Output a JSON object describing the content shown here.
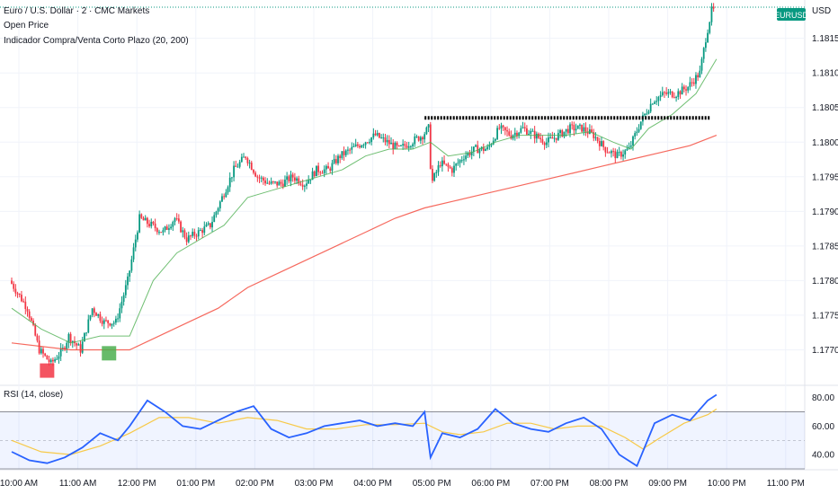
{
  "legend": {
    "symbol": "Euro / U.S. Dollar · 2 · CMC Markets",
    "line2": "Open Price",
    "line3": "Indicador Compra/Venta Corto Plazo (20, 200)"
  },
  "currency": "USD",
  "symbol_badge": "EURUSD",
  "rsi_label": "RSI (14, close)",
  "colors": {
    "up": "#089981",
    "down": "#f23645",
    "ma_fast": "#4caf50",
    "ma_slow": "#f44336",
    "rsi_line": "#2962ff",
    "rsi_ma": "#f7c948",
    "level_line": "#000000",
    "buy_marker": "#4caf50",
    "sell_marker": "#f23645",
    "badge": "#089981"
  },
  "chart_data": [
    {
      "type": "candlestick",
      "title": "",
      "x_ticks": [
        "10:00 AM",
        "11:00 AM",
        "12:00 PM",
        "01:00 PM",
        "02:00 PM",
        "03:00 PM",
        "04:00 PM",
        "05:00 PM",
        "06:00 PM",
        "07:00 PM",
        "08:00 PM",
        "09:00 PM",
        "10:00 PM",
        "11:00 PM"
      ],
      "y_ticks": [
        "1.18150",
        "1.18100",
        "1.18050",
        "1.18000",
        "1.17950",
        "1.17900",
        "1.17850",
        "1.17800",
        "1.17750",
        "1.17700"
      ],
      "ylim": [
        1.1765,
        1.18195
      ],
      "price_path": [
        [
          0,
          1.178
        ],
        [
          0.3,
          1.1776
        ],
        [
          0.5,
          1.177
        ],
        [
          0.7,
          1.1768
        ],
        [
          0.9,
          1.177
        ],
        [
          1.0,
          1.1772
        ],
        [
          1.2,
          1.177
        ],
        [
          1.4,
          1.1776
        ],
        [
          1.6,
          1.1774
        ],
        [
          1.8,
          1.1774
        ],
        [
          2.0,
          1.178
        ],
        [
          2.2,
          1.1789
        ],
        [
          2.4,
          1.1788
        ],
        [
          2.6,
          1.1787
        ],
        [
          2.8,
          1.1789
        ],
        [
          3.0,
          1.1786
        ],
        [
          3.2,
          1.1787
        ],
        [
          3.4,
          1.1788
        ],
        [
          3.6,
          1.1792
        ],
        [
          3.8,
          1.1796
        ],
        [
          4.0,
          1.1798
        ],
        [
          4.2,
          1.1795
        ],
        [
          4.4,
          1.1794
        ],
        [
          4.6,
          1.1794
        ],
        [
          4.8,
          1.1795
        ],
        [
          5.0,
          1.1794
        ],
        [
          5.2,
          1.1796
        ],
        [
          5.4,
          1.1796
        ],
        [
          5.6,
          1.1798
        ],
        [
          5.8,
          1.1799
        ],
        [
          6.0,
          1.18
        ],
        [
          6.2,
          1.1801
        ],
        [
          6.4,
          1.18
        ],
        [
          6.6,
          1.1799
        ],
        [
          6.8,
          1.18
        ],
        [
          7.0,
          1.1801
        ],
        [
          7.1,
          1.1802
        ],
        [
          7.15,
          1.1794
        ],
        [
          7.3,
          1.1797
        ],
        [
          7.5,
          1.1796
        ],
        [
          7.7,
          1.1798
        ],
        [
          7.9,
          1.1799
        ],
        [
          8.1,
          1.1799
        ],
        [
          8.3,
          1.1802
        ],
        [
          8.5,
          1.1801
        ],
        [
          8.7,
          1.1802
        ],
        [
          8.9,
          1.1801
        ],
        [
          9.1,
          1.18
        ],
        [
          9.3,
          1.1801
        ],
        [
          9.5,
          1.1802
        ],
        [
          9.7,
          1.1802
        ],
        [
          9.9,
          1.1801
        ],
        [
          10.1,
          1.1799
        ],
        [
          10.3,
          1.1798
        ],
        [
          10.5,
          1.1799
        ],
        [
          10.7,
          1.1803
        ],
        [
          10.9,
          1.1806
        ],
        [
          11.1,
          1.1807
        ],
        [
          11.3,
          1.1807
        ],
        [
          11.5,
          1.1808
        ],
        [
          11.7,
          1.181
        ],
        [
          11.8,
          1.1815
        ],
        [
          11.9,
          1.1819
        ]
      ],
      "ma_fast_path": [
        [
          0,
          1.1776
        ],
        [
          0.5,
          1.1773
        ],
        [
          1.0,
          1.1771
        ],
        [
          1.5,
          1.1772
        ],
        [
          2.0,
          1.1772
        ],
        [
          2.4,
          1.178
        ],
        [
          2.8,
          1.1784
        ],
        [
          3.2,
          1.1786
        ],
        [
          3.6,
          1.1788
        ],
        [
          4.0,
          1.1792
        ],
        [
          4.4,
          1.1793
        ],
        [
          4.8,
          1.1794
        ],
        [
          5.2,
          1.1795
        ],
        [
          5.6,
          1.1796
        ],
        [
          6.0,
          1.1798
        ],
        [
          6.4,
          1.1799
        ],
        [
          6.8,
          1.1799
        ],
        [
          7.1,
          1.18
        ],
        [
          7.4,
          1.1798
        ],
        [
          7.8,
          1.17985
        ],
        [
          8.2,
          1.18
        ],
        [
          8.6,
          1.1801
        ],
        [
          9.0,
          1.1801
        ],
        [
          9.4,
          1.1801
        ],
        [
          9.8,
          1.18015
        ],
        [
          10.2,
          1.18
        ],
        [
          10.5,
          1.1799
        ],
        [
          10.8,
          1.1802
        ],
        [
          11.2,
          1.1804
        ],
        [
          11.6,
          1.1807
        ],
        [
          11.95,
          1.1812
        ]
      ],
      "ma_slow_path": [
        [
          0,
          1.1771
        ],
        [
          1.0,
          1.177
        ],
        [
          2.0,
          1.177
        ],
        [
          2.5,
          1.1772
        ],
        [
          3.0,
          1.1774
        ],
        [
          3.5,
          1.1776
        ],
        [
          4.0,
          1.1779
        ],
        [
          4.5,
          1.1781
        ],
        [
          5.0,
          1.1783
        ],
        [
          5.5,
          1.1785
        ],
        [
          6.0,
          1.1787
        ],
        [
          6.5,
          1.1789
        ],
        [
          7.0,
          1.17905
        ],
        [
          7.5,
          1.17915
        ],
        [
          8.0,
          1.17925
        ],
        [
          8.5,
          1.17935
        ],
        [
          9.0,
          1.17945
        ],
        [
          9.5,
          1.17955
        ],
        [
          10.0,
          1.17965
        ],
        [
          10.5,
          1.17975
        ],
        [
          11.0,
          1.17985
        ],
        [
          11.5,
          1.17995
        ],
        [
          11.95,
          1.1801
        ]
      ],
      "level_line": {
        "value": 1.18035,
        "from_hour": 7.0,
        "to_hour": 12.0
      },
      "markers": [
        {
          "kind": "sell",
          "hour": 0.6,
          "value": 1.1767
        },
        {
          "kind": "buy",
          "hour": 1.65,
          "value": 1.17695
        }
      ],
      "last_price_line": 1.18195
    },
    {
      "type": "line",
      "title": "RSI (14, close)",
      "y_ticks": [
        "80.00",
        "60.00",
        "40.00"
      ],
      "ylim": [
        30,
        88
      ],
      "band": [
        30,
        70
      ],
      "rsi_path": [
        [
          0,
          42
        ],
        [
          0.3,
          36
        ],
        [
          0.6,
          34
        ],
        [
          0.9,
          38
        ],
        [
          1.2,
          45
        ],
        [
          1.5,
          55
        ],
        [
          1.8,
          50
        ],
        [
          2.0,
          60
        ],
        [
          2.3,
          78
        ],
        [
          2.6,
          70
        ],
        [
          2.9,
          60
        ],
        [
          3.2,
          58
        ],
        [
          3.5,
          64
        ],
        [
          3.8,
          70
        ],
        [
          4.1,
          74
        ],
        [
          4.4,
          58
        ],
        [
          4.7,
          52
        ],
        [
          5.0,
          55
        ],
        [
          5.3,
          60
        ],
        [
          5.6,
          62
        ],
        [
          5.9,
          64
        ],
        [
          6.2,
          60
        ],
        [
          6.5,
          62
        ],
        [
          6.8,
          60
        ],
        [
          7.0,
          70
        ],
        [
          7.1,
          38
        ],
        [
          7.3,
          55
        ],
        [
          7.6,
          52
        ],
        [
          7.9,
          58
        ],
        [
          8.2,
          72
        ],
        [
          8.5,
          62
        ],
        [
          8.8,
          58
        ],
        [
          9.1,
          56
        ],
        [
          9.4,
          62
        ],
        [
          9.7,
          66
        ],
        [
          10.0,
          58
        ],
        [
          10.3,
          40
        ],
        [
          10.6,
          32
        ],
        [
          10.9,
          62
        ],
        [
          11.2,
          68
        ],
        [
          11.5,
          64
        ],
        [
          11.8,
          78
        ],
        [
          11.95,
          82
        ]
      ],
      "rsi_ma_path": [
        [
          0,
          50
        ],
        [
          0.5,
          42
        ],
        [
          1.0,
          40
        ],
        [
          1.5,
          46
        ],
        [
          2.0,
          55
        ],
        [
          2.5,
          66
        ],
        [
          3.0,
          66
        ],
        [
          3.5,
          62
        ],
        [
          4.0,
          66
        ],
        [
          4.5,
          64
        ],
        [
          5.0,
          58
        ],
        [
          5.5,
          58
        ],
        [
          6.0,
          61
        ],
        [
          6.5,
          61
        ],
        [
          7.0,
          62
        ],
        [
          7.3,
          56
        ],
        [
          7.6,
          54
        ],
        [
          8.0,
          56
        ],
        [
          8.4,
          62
        ],
        [
          8.8,
          62
        ],
        [
          9.2,
          58
        ],
        [
          9.6,
          60
        ],
        [
          10.0,
          60
        ],
        [
          10.4,
          52
        ],
        [
          10.7,
          44
        ],
        [
          11.0,
          52
        ],
        [
          11.4,
          62
        ],
        [
          11.8,
          68
        ],
        [
          11.95,
          72
        ]
      ]
    }
  ]
}
